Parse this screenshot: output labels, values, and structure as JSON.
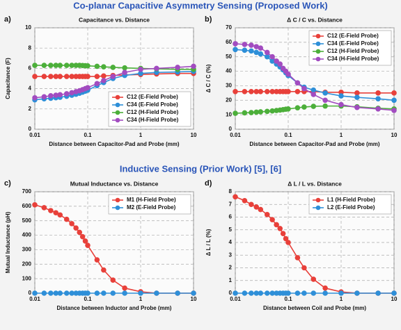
{
  "sections": [
    "Co-planar Capacitive Asymmetry Sensing (Proposed Work)",
    "Inductive Sensing (Prior Work) [5], [6]"
  ],
  "chart_data": [
    {
      "type": "line",
      "panel": "a)",
      "title": "Capacitance vs. Distance",
      "x_label": "Distance between Capacitor-Pad and Probe (mm)",
      "y_label": "Capacitance (F)",
      "x": [
        0.01,
        0.015,
        0.02,
        0.025,
        0.03,
        0.04,
        0.05,
        0.06,
        0.07,
        0.08,
        0.09,
        0.1,
        0.15,
        0.2,
        0.3,
        0.5,
        1,
        2,
        5,
        10
      ],
      "xlim": [
        0.01,
        10
      ],
      "xticks": [
        0.01,
        0.1,
        1,
        10
      ],
      "xscale": "log",
      "ylim": [
        0,
        10
      ],
      "yticks": [
        0,
        2,
        4,
        6,
        8,
        10
      ],
      "grid": true,
      "legend": "bottom-right",
      "series": [
        {
          "name": "C12 (E-Field Probe)",
          "color": "#e8403a",
          "values": [
            5.2,
            5.2,
            5.2,
            5.2,
            5.2,
            5.2,
            5.2,
            5.2,
            5.2,
            5.2,
            5.2,
            5.2,
            5.2,
            5.25,
            5.3,
            5.35,
            5.4,
            5.45,
            5.5,
            5.5
          ]
        },
        {
          "name": "C34 (E-Field Probe)",
          "color": "#2e8fd8",
          "values": [
            2.9,
            3.0,
            3.05,
            3.1,
            3.15,
            3.25,
            3.35,
            3.45,
            3.55,
            3.65,
            3.75,
            3.85,
            4.3,
            4.6,
            5.0,
            5.3,
            5.5,
            5.6,
            5.65,
            5.7
          ]
        },
        {
          "name": "C12 (H-Field Probe)",
          "color": "#4caf3a",
          "values": [
            6.3,
            6.3,
            6.3,
            6.3,
            6.3,
            6.3,
            6.3,
            6.3,
            6.3,
            6.28,
            6.26,
            6.25,
            6.2,
            6.15,
            6.1,
            6.05,
            6.0,
            5.95,
            5.9,
            5.9
          ]
        },
        {
          "name": "C34 (H-Field Probe)",
          "color": "#a24cc0",
          "values": [
            3.1,
            3.2,
            3.3,
            3.35,
            3.4,
            3.5,
            3.6,
            3.7,
            3.8,
            3.9,
            4.0,
            4.1,
            4.5,
            4.8,
            5.2,
            5.6,
            5.9,
            6.0,
            6.1,
            6.2
          ]
        }
      ]
    },
    {
      "type": "line",
      "panel": "b)",
      "title": "Δ C / C vs. Distance",
      "x_label": "Distance between Capacitor-Pad and Probe (mm)",
      "y_label": "Δ C / C (%)",
      "x": [
        0.01,
        0.015,
        0.02,
        0.025,
        0.03,
        0.04,
        0.05,
        0.06,
        0.07,
        0.08,
        0.09,
        0.1,
        0.15,
        0.2,
        0.3,
        0.5,
        1,
        2,
        5,
        10
      ],
      "xlim": [
        0.01,
        10
      ],
      "xticks": [
        0.01,
        0.1,
        1,
        10
      ],
      "xscale": "log",
      "ylim": [
        0,
        70
      ],
      "yticks": [
        0,
        10,
        20,
        30,
        40,
        50,
        60,
        70
      ],
      "grid": true,
      "legend": "top-right",
      "series": [
        {
          "name": "C12 (E-Field Probe)",
          "color": "#e8403a",
          "values": [
            26,
            26,
            26,
            26,
            26,
            26,
            26,
            26,
            26,
            26,
            26,
            26,
            26,
            26,
            26,
            25.5,
            25.5,
            25,
            25,
            25
          ]
        },
        {
          "name": "C34 (E-Field Probe)",
          "color": "#2e8fd8",
          "values": [
            55,
            54.5,
            54,
            53,
            52,
            50,
            47,
            45,
            43,
            41,
            39,
            37,
            32,
            29,
            27,
            25,
            23,
            22,
            21,
            20
          ]
        },
        {
          "name": "C12 (H-Field Probe)",
          "color": "#4caf3a",
          "values": [
            11,
            11.3,
            11.5,
            11.8,
            12,
            12.3,
            12.6,
            12.9,
            13.2,
            13.5,
            13.8,
            14,
            14.8,
            15.3,
            15.8,
            16,
            16,
            15.5,
            14.5,
            14
          ]
        },
        {
          "name": "C34 (H-Field Probe)",
          "color": "#a24cc0",
          "values": [
            59,
            58.5,
            58,
            57,
            56,
            53,
            50,
            47,
            45,
            42,
            40,
            38,
            32,
            28,
            24,
            20,
            17,
            15,
            14,
            13
          ]
        }
      ]
    },
    {
      "type": "line",
      "panel": "c)",
      "title": "Mutual Inductance vs. Distance",
      "x_label": "Distance between Inductor and Probe (mm)",
      "y_label": "Mutual Inductance (pH)",
      "x": [
        0.01,
        0.015,
        0.02,
        0.025,
        0.03,
        0.04,
        0.05,
        0.06,
        0.07,
        0.08,
        0.09,
        0.1,
        0.15,
        0.2,
        0.3,
        0.5,
        1,
        2,
        5,
        10
      ],
      "xlim": [
        0.01,
        10
      ],
      "xticks": [
        0.01,
        0.1,
        1,
        10
      ],
      "xscale": "log",
      "ylim": [
        0,
        700
      ],
      "yticks": [
        0,
        100,
        200,
        300,
        400,
        500,
        600,
        700
      ],
      "grid": true,
      "legend": "top-right",
      "series": [
        {
          "name": "M1 (H-Field Probe)",
          "color": "#e8403a",
          "values": [
            610,
            590,
            570,
            555,
            540,
            510,
            480,
            450,
            420,
            390,
            360,
            330,
            230,
            160,
            90,
            35,
            10,
            0,
            0,
            0
          ]
        },
        {
          "name": "M2 (E-Field Probe)",
          "color": "#2e8fd8",
          "values": [
            0,
            0,
            0,
            0,
            0,
            0,
            0,
            0,
            0,
            0,
            0,
            0,
            0,
            0,
            0,
            0,
            0,
            0,
            0,
            0
          ]
        }
      ]
    },
    {
      "type": "line",
      "panel": "d)",
      "title": "Δ L / L vs. Distance",
      "x_label": "Distance between Coil and Probe (mm)",
      "y_label": "Δ L / L (%)",
      "x": [
        0.01,
        0.015,
        0.02,
        0.025,
        0.03,
        0.04,
        0.05,
        0.06,
        0.07,
        0.08,
        0.09,
        0.1,
        0.15,
        0.2,
        0.3,
        0.5,
        1,
        2,
        5,
        10
      ],
      "xlim": [
        0.01,
        10
      ],
      "xticks": [
        0.01,
        0.1,
        1,
        10
      ],
      "xscale": "log",
      "ylim": [
        0,
        8
      ],
      "yticks": [
        0,
        1,
        2,
        3,
        4,
        5,
        6,
        7,
        8
      ],
      "grid": true,
      "legend": "top-right",
      "series": [
        {
          "name": "L1 (H-Field Probe)",
          "color": "#e8403a",
          "values": [
            7.6,
            7.3,
            7.0,
            6.8,
            6.6,
            6.2,
            5.8,
            5.4,
            5.1,
            4.7,
            4.3,
            4.0,
            2.8,
            2.0,
            1.1,
            0.4,
            0.1,
            0,
            0,
            0
          ]
        },
        {
          "name": "L2 (E-Field Probe)",
          "color": "#2e8fd8",
          "values": [
            0,
            0,
            0,
            0,
            0,
            0,
            0,
            0,
            0,
            0,
            0,
            0,
            0,
            0,
            0,
            0,
            0,
            0,
            0,
            0
          ]
        }
      ]
    }
  ]
}
